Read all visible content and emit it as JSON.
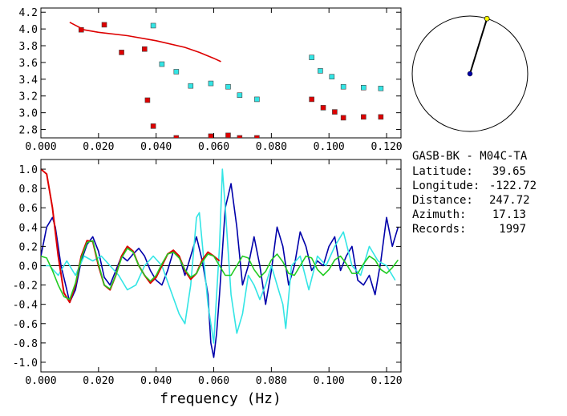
{
  "info": {
    "station_pair": "GASB-BK - M04C-TA",
    "rows": [
      {
        "label": "Latitude:",
        "value": "39.65"
      },
      {
        "label": "Longitude:",
        "value": "-122.72"
      },
      {
        "label": "Distance:",
        "value": "247.72"
      },
      {
        "label": "Azimuth:",
        "value": "17.13"
      },
      {
        "label": "Records:",
        "value": "1997"
      }
    ]
  },
  "colors": {
    "red": "#dd0000",
    "cyan": "#33e5e5",
    "blue": "#0000aa",
    "green": "#22cc22",
    "yellow": "#ffff00"
  },
  "azimuth_dial": {
    "azimuth_deg": 17.13
  },
  "chart_data": [
    {
      "type": "scatter",
      "title": "",
      "xlabel": "",
      "ylabel": "",
      "xlim": [
        0.0,
        0.125
      ],
      "ylim": [
        2.7,
        4.25
      ],
      "x_ticks": [
        "0.000",
        "0.020",
        "0.040",
        "0.060",
        "0.080",
        "0.100",
        "0.120"
      ],
      "y_ticks": [
        "2.8",
        "3.0",
        "3.2",
        "3.4",
        "3.6",
        "3.8",
        "4.0",
        "4.2"
      ],
      "series": [
        {
          "style": "square",
          "color": "red",
          "points": [
            [
              0.014,
              3.99
            ],
            [
              0.022,
              4.05
            ],
            [
              0.028,
              3.72
            ],
            [
              0.036,
              3.76
            ],
            [
              0.037,
              3.15
            ],
            [
              0.039,
              2.84
            ],
            [
              0.047,
              2.7
            ],
            [
              0.059,
              2.72
            ],
            [
              0.065,
              2.73
            ],
            [
              0.069,
              2.7
            ],
            [
              0.075,
              2.7
            ],
            [
              0.094,
              3.16
            ],
            [
              0.098,
              3.06
            ],
            [
              0.102,
              3.01
            ],
            [
              0.105,
              2.94
            ],
            [
              0.112,
              2.95
            ],
            [
              0.118,
              2.95
            ]
          ]
        },
        {
          "style": "square",
          "color": "cyan",
          "points": [
            [
              0.039,
              4.04
            ],
            [
              0.042,
              3.58
            ],
            [
              0.047,
              3.49
            ],
            [
              0.052,
              3.32
            ],
            [
              0.059,
              3.35
            ],
            [
              0.065,
              3.31
            ],
            [
              0.069,
              3.21
            ],
            [
              0.075,
              3.16
            ],
            [
              0.094,
              3.66
            ],
            [
              0.097,
              3.5
            ],
            [
              0.101,
              3.43
            ],
            [
              0.105,
              3.31
            ],
            [
              0.112,
              3.3
            ],
            [
              0.118,
              3.29
            ]
          ]
        },
        {
          "style": "line",
          "color": "red",
          "points": [
            [
              0.01,
              4.08
            ],
            [
              0.015,
              3.99
            ],
            [
              0.02,
              3.96
            ],
            [
              0.03,
              3.92
            ],
            [
              0.04,
              3.86
            ],
            [
              0.05,
              3.78
            ],
            [
              0.055,
              3.72
            ],
            [
              0.06,
              3.65
            ],
            [
              0.0625,
              3.61
            ]
          ]
        }
      ]
    },
    {
      "type": "line",
      "title": "",
      "xlabel": "frequency (Hz)",
      "ylabel": "",
      "xlim": [
        0.0,
        0.125
      ],
      "ylim": [
        -1.1,
        1.1
      ],
      "x_ticks": [
        "0.000",
        "0.020",
        "0.040",
        "0.060",
        "0.080",
        "0.100",
        "0.120"
      ],
      "y_ticks": [
        "-1.0",
        "-0.8",
        "-0.6",
        "-0.4",
        "-0.2",
        "0.0",
        "0.2",
        "0.4",
        "0.6",
        "0.8",
        "1.0"
      ],
      "series": [
        {
          "color": "blue",
          "x": [
            0.0,
            0.002,
            0.004,
            0.005,
            0.007,
            0.009,
            0.01,
            0.012,
            0.014,
            0.016,
            0.018,
            0.02,
            0.022,
            0.024,
            0.026,
            0.028,
            0.03,
            0.032,
            0.034,
            0.036,
            0.038,
            0.04,
            0.042,
            0.044,
            0.046,
            0.048,
            0.05,
            0.052,
            0.054,
            0.056,
            0.058,
            0.059,
            0.06,
            0.061,
            0.062,
            0.064,
            0.066,
            0.068,
            0.07,
            0.072,
            0.074,
            0.076,
            0.078,
            0.08,
            0.082,
            0.084,
            0.086,
            0.088,
            0.09,
            0.092,
            0.094,
            0.096,
            0.098,
            0.1,
            0.102,
            0.104,
            0.106,
            0.108,
            0.11,
            0.112,
            0.114,
            0.116,
            0.118,
            0.12,
            0.122,
            0.124
          ],
          "y": [
            0.1,
            0.4,
            0.5,
            0.4,
            0.0,
            -0.25,
            -0.38,
            -0.25,
            0.05,
            0.22,
            0.3,
            0.15,
            -0.12,
            -0.2,
            -0.05,
            0.1,
            0.05,
            0.12,
            0.18,
            0.1,
            -0.05,
            -0.15,
            -0.2,
            -0.05,
            0.15,
            0.1,
            -0.1,
            0.1,
            0.3,
            0.05,
            -0.3,
            -0.8,
            -0.95,
            -0.7,
            -0.3,
            0.6,
            0.85,
            0.4,
            -0.2,
            0.0,
            0.3,
            0.0,
            -0.4,
            -0.05,
            0.4,
            0.2,
            -0.2,
            0.0,
            0.35,
            0.2,
            -0.05,
            0.05,
            0.0,
            0.2,
            0.3,
            -0.05,
            0.1,
            0.2,
            -0.15,
            -0.2,
            -0.1,
            -0.3,
            0.05,
            0.5,
            0.2,
            0.4
          ]
        },
        {
          "color": "cyan",
          "x": [
            0.0,
            0.003,
            0.006,
            0.009,
            0.012,
            0.015,
            0.018,
            0.021,
            0.024,
            0.027,
            0.03,
            0.033,
            0.036,
            0.039,
            0.042,
            0.045,
            0.048,
            0.05,
            0.052,
            0.054,
            0.055,
            0.058,
            0.06,
            0.062,
            0.063,
            0.064,
            0.066,
            0.068,
            0.07,
            0.072,
            0.074,
            0.076,
            0.078,
            0.08,
            0.082,
            0.084,
            0.085,
            0.087,
            0.09,
            0.093,
            0.096,
            0.099,
            0.102,
            0.105,
            0.108,
            0.111,
            0.114,
            0.117,
            0.12,
            0.123
          ],
          "y": [
            0.0,
            0.0,
            -0.1,
            0.05,
            -0.1,
            0.1,
            0.05,
            0.1,
            0.0,
            -0.1,
            -0.25,
            -0.2,
            0.0,
            0.1,
            0.0,
            -0.25,
            -0.5,
            -0.6,
            -0.2,
            0.5,
            0.55,
            -0.4,
            -0.8,
            0.2,
            1.0,
            0.6,
            -0.3,
            -0.7,
            -0.5,
            -0.1,
            -0.2,
            -0.35,
            -0.2,
            0.0,
            -0.2,
            -0.4,
            -0.65,
            0.0,
            0.1,
            -0.25,
            0.1,
            0.0,
            0.2,
            0.35,
            0.0,
            -0.1,
            0.2,
            0.05,
            0.0,
            -0.15
          ]
        },
        {
          "color": "red",
          "x": [
            0.0,
            0.002,
            0.004,
            0.006,
            0.008,
            0.01,
            0.012,
            0.014,
            0.016,
            0.018,
            0.02,
            0.022,
            0.024,
            0.026,
            0.028,
            0.03,
            0.032,
            0.034,
            0.036,
            0.038,
            0.04,
            0.042,
            0.044,
            0.046,
            0.048,
            0.05,
            0.052,
            0.054,
            0.056,
            0.058,
            0.06,
            0.062
          ],
          "y": [
            1.0,
            0.95,
            0.6,
            0.1,
            -0.28,
            -0.38,
            -0.2,
            0.1,
            0.26,
            0.25,
            0.0,
            -0.2,
            -0.25,
            -0.1,
            0.1,
            0.2,
            0.15,
            0.0,
            -0.1,
            -0.18,
            -0.12,
            0.0,
            0.12,
            0.16,
            0.1,
            -0.05,
            -0.14,
            -0.08,
            0.06,
            0.14,
            0.1,
            0.05
          ]
        },
        {
          "color": "green",
          "x": [
            0.0,
            0.002,
            0.004,
            0.006,
            0.008,
            0.01,
            0.012,
            0.014,
            0.016,
            0.018,
            0.02,
            0.022,
            0.024,
            0.026,
            0.028,
            0.03,
            0.032,
            0.034,
            0.036,
            0.038,
            0.04,
            0.042,
            0.044,
            0.046,
            0.048,
            0.05,
            0.052,
            0.054,
            0.056,
            0.058,
            0.06,
            0.062,
            0.064,
            0.066,
            0.068,
            0.07,
            0.072,
            0.074,
            0.076,
            0.078,
            0.08,
            0.082,
            0.084,
            0.086,
            0.088,
            0.09,
            0.092,
            0.094,
            0.096,
            0.098,
            0.1,
            0.102,
            0.104,
            0.106,
            0.108,
            0.11,
            0.112,
            0.114,
            0.116,
            0.118,
            0.12,
            0.122,
            0.124
          ],
          "y": [
            0.1,
            0.08,
            -0.05,
            -0.2,
            -0.32,
            -0.35,
            -0.18,
            0.08,
            0.24,
            0.26,
            0.02,
            -0.2,
            -0.24,
            -0.1,
            0.08,
            0.18,
            0.14,
            0.0,
            -0.1,
            -0.16,
            -0.1,
            0.02,
            0.12,
            0.14,
            0.08,
            -0.04,
            -0.12,
            -0.08,
            0.04,
            0.12,
            0.1,
            0.0,
            -0.1,
            -0.1,
            0.0,
            0.1,
            0.08,
            -0.04,
            -0.12,
            -0.06,
            0.06,
            0.12,
            0.04,
            -0.08,
            -0.1,
            0.0,
            0.1,
            0.08,
            -0.04,
            -0.1,
            -0.04,
            0.06,
            0.1,
            0.02,
            -0.08,
            -0.08,
            0.02,
            0.1,
            0.06,
            -0.04,
            -0.08,
            -0.02,
            0.06
          ]
        }
      ]
    }
  ]
}
